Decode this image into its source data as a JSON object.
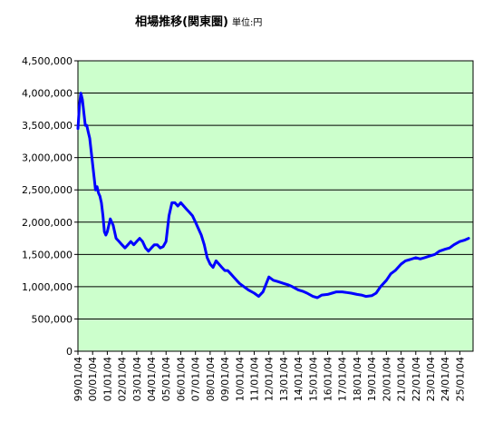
{
  "chart_data": {
    "type": "line",
    "title": "相場推移(関東圏)",
    "unit_label": "単位:円",
    "ylim": [
      0,
      4500000
    ],
    "y_ticks": [
      0,
      500000,
      1000000,
      1500000,
      2000000,
      2500000,
      3000000,
      3500000,
      4000000,
      4500000
    ],
    "y_tick_labels": [
      "0",
      "500,000",
      "1,000,000",
      "1,500,000",
      "2,000,000",
      "2,500,000",
      "3,000,000",
      "3,500,000",
      "4,000,000",
      "4,500,000"
    ],
    "x_tick_labels": [
      "99/01/04",
      "00/01/04",
      "01/01/04",
      "02/01/04",
      "03/01/04",
      "04/01/04",
      "05/01/04",
      "06/01/04",
      "07/01/04",
      "08/01/04",
      "09/01/04",
      "10/01/04",
      "11/01/04",
      "12/01/04",
      "13/01/04",
      "14/01/04",
      "15/01/04",
      "16/01/04",
      "17/01/04",
      "18/01/04",
      "19/01/04",
      "20/01/04",
      "21/01/04",
      "22/01/04",
      "23/01/04",
      "24/01/04",
      "25/01/04"
    ],
    "grid": true,
    "plot_background": "#ccffcc",
    "line_color": "#0000ff",
    "series": [
      {
        "x": [
          1999.0,
          1999.1,
          1999.2,
          1999.3,
          1999.4,
          1999.5,
          1999.6,
          1999.7,
          1999.8,
          1999.9,
          2000.0,
          2000.1,
          2000.2,
          2000.3,
          2000.4,
          2000.5,
          2000.6,
          2000.7,
          2000.8,
          2000.9,
          2001.0,
          2001.2,
          2001.4,
          2001.6,
          2001.8,
          2002.0,
          2002.2,
          2002.4,
          2002.6,
          2002.8,
          2003.0,
          2003.2,
          2003.4,
          2003.6,
          2003.8,
          2004.0,
          2004.2,
          2004.4,
          2004.6,
          2004.8,
          2005.0,
          2005.2,
          2005.4,
          2005.6,
          2005.8,
          2006.0,
          2006.2,
          2006.4,
          2006.6,
          2006.8,
          2007.0,
          2007.2,
          2007.4,
          2007.6,
          2007.8,
          2008.0,
          2008.2,
          2008.4,
          2008.6,
          2008.8,
          2009.0,
          2009.2,
          2009.4,
          2009.6,
          2009.8,
          2010.0,
          2010.3,
          2010.6,
          2011.0,
          2011.3,
          2011.6,
          2012.0,
          2012.3,
          2012.6,
          2013.0,
          2013.3,
          2013.6,
          2014.0,
          2014.3,
          2014.6,
          2015.0,
          2015.3,
          2015.6,
          2016.0,
          2016.3,
          2016.6,
          2017.0,
          2017.3,
          2017.6,
          2018.0,
          2018.3,
          2018.6,
          2019.0,
          2019.3,
          2019.6,
          2020.0,
          2020.3,
          2020.6,
          2021.0,
          2021.3,
          2021.6,
          2022.0,
          2022.3,
          2022.6,
          2023.0,
          2023.3,
          2023.6,
          2024.0,
          2024.3,
          2024.6,
          2025.0,
          2025.3,
          2025.6
        ],
        "y": [
          3450000,
          3800000,
          4000000,
          3900000,
          3700000,
          3500000,
          3500000,
          3400000,
          3300000,
          3100000,
          2900000,
          2700000,
          2500000,
          2550000,
          2450000,
          2400000,
          2300000,
          2100000,
          1850000,
          1800000,
          1850000,
          2050000,
          1950000,
          1750000,
          1700000,
          1650000,
          1600000,
          1650000,
          1700000,
          1650000,
          1700000,
          1750000,
          1700000,
          1600000,
          1550000,
          1600000,
          1650000,
          1650000,
          1600000,
          1620000,
          1700000,
          2100000,
          2300000,
          2300000,
          2250000,
          2300000,
          2250000,
          2200000,
          2150000,
          2100000,
          2000000,
          1900000,
          1800000,
          1650000,
          1450000,
          1350000,
          1300000,
          1400000,
          1350000,
          1300000,
          1250000,
          1250000,
          1200000,
          1150000,
          1100000,
          1050000,
          1000000,
          950000,
          900000,
          850000,
          920000,
          1150000,
          1100000,
          1080000,
          1050000,
          1030000,
          1000000,
          950000,
          930000,
          900000,
          850000,
          830000,
          870000,
          880000,
          900000,
          920000,
          920000,
          910000,
          900000,
          880000,
          870000,
          850000,
          860000,
          900000,
          1000000,
          1100000,
          1200000,
          1250000,
          1350000,
          1400000,
          1420000,
          1450000,
          1430000,
          1450000,
          1480000,
          1500000,
          1550000,
          1580000,
          1600000,
          1650000,
          1700000,
          1720000,
          1750000
        ]
      }
    ]
  }
}
